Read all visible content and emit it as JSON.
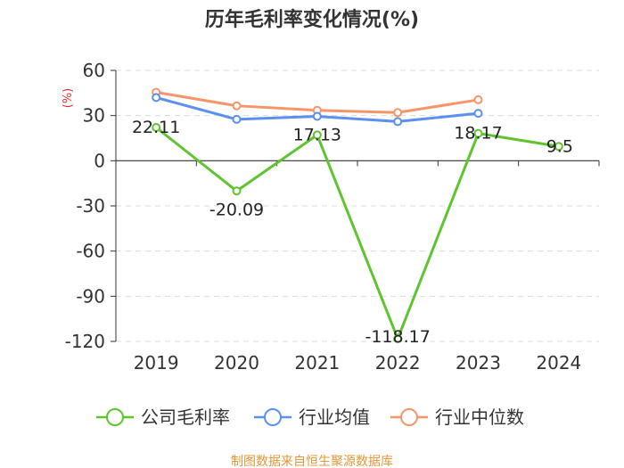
{
  "chart_data": {
    "type": "line",
    "title": "历年毛利率变化情况(%)",
    "ylabel": "(%)",
    "categories": [
      "2019",
      "2020",
      "2021",
      "2022",
      "2023",
      "2024"
    ],
    "ylim": [
      -120,
      60
    ],
    "yticks": [
      60,
      30,
      0,
      -30,
      -60,
      -90,
      -120
    ],
    "grid": true,
    "legend_position": "bottom",
    "series": [
      {
        "name": "公司毛利率",
        "color": "#5fc42f",
        "values": [
          22.11,
          -20.09,
          17.13,
          -118.17,
          18.17,
          9.5
        ],
        "labels": [
          "22.11",
          "-20.09",
          "17.13",
          "-118.17",
          "18.17",
          "9.5"
        ]
      },
      {
        "name": "行业均值",
        "color": "#5b8ff0",
        "values": [
          42.0,
          27.5,
          29.5,
          26.0,
          31.5,
          null
        ]
      },
      {
        "name": "行业中位数",
        "color": "#f7956a",
        "values": [
          45.5,
          36.5,
          33.5,
          32.0,
          40.5,
          null
        ]
      }
    ]
  },
  "source": "制图数据来自恒生聚源数据库",
  "colors": {
    "ylabel": "#e0302a",
    "source": "#e3983a",
    "axis": "#333333",
    "grid": "#dcdcdc"
  }
}
